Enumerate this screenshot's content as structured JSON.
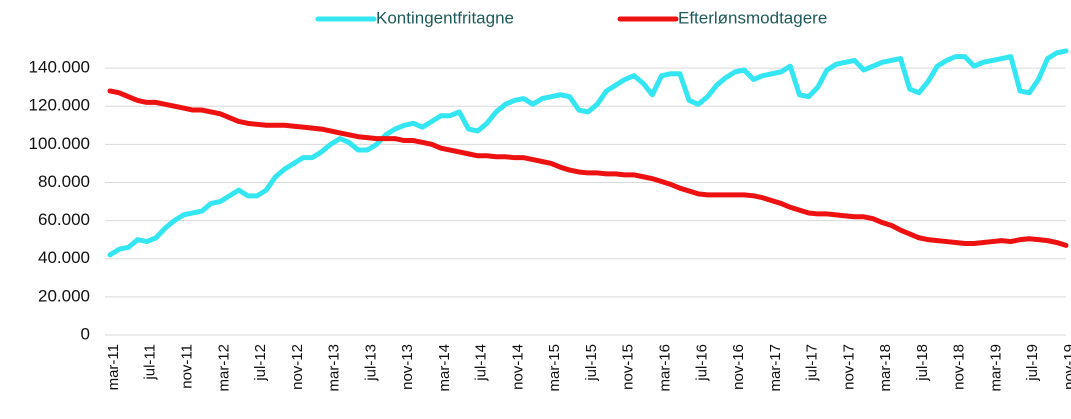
{
  "chart_data": {
    "type": "line",
    "categories": [
      "mar-11",
      null,
      null,
      null,
      "jul-11",
      null,
      null,
      null,
      "nov-11",
      null,
      null,
      null,
      "mar-12",
      null,
      null,
      null,
      "jul-12",
      null,
      null,
      null,
      "nov-12",
      null,
      null,
      null,
      "mar-13",
      null,
      null,
      null,
      "jul-13",
      null,
      null,
      null,
      "nov-13",
      null,
      null,
      null,
      "mar-14",
      null,
      null,
      null,
      "jul-14",
      null,
      null,
      null,
      "nov-14",
      null,
      null,
      null,
      "mar-15",
      null,
      null,
      null,
      "jul-15",
      null,
      null,
      null,
      "nov-15",
      null,
      null,
      null,
      "mar-16",
      null,
      null,
      null,
      "jul-16",
      null,
      null,
      null,
      "nov-16",
      null,
      null,
      null,
      "mar-17",
      null,
      null,
      null,
      "jul-17",
      null,
      null,
      null,
      "nov-17",
      null,
      null,
      null,
      "mar-18",
      null,
      null,
      null,
      "jul-18",
      null,
      null,
      null,
      "nov-18",
      null,
      null,
      null,
      "mar-19",
      null,
      null,
      null,
      "jul-19",
      null,
      null,
      null,
      "nov-19"
    ],
    "series": [
      {
        "name": "Kontingentfritagne",
        "color": "#33e6f2",
        "values": [
          42000,
          45000,
          46000,
          50000,
          49000,
          51000,
          56000,
          60000,
          63000,
          64000,
          65000,
          69000,
          70000,
          73000,
          76000,
          73000,
          73000,
          76000,
          83000,
          87000,
          90000,
          93000,
          93000,
          96000,
          100000,
          103000,
          101000,
          97000,
          97000,
          100000,
          105000,
          108000,
          110000,
          111000,
          109000,
          112000,
          115000,
          115000,
          117000,
          108000,
          107000,
          111000,
          117000,
          121000,
          123000,
          124000,
          121000,
          124000,
          125000,
          126000,
          125000,
          118000,
          117000,
          121000,
          128000,
          131000,
          134000,
          136000,
          132000,
          126000,
          136000,
          137000,
          137000,
          123000,
          121000,
          125000,
          131000,
          135000,
          138000,
          139000,
          134000,
          136000,
          137000,
          138000,
          141000,
          126000,
          125000,
          130000,
          139000,
          142000,
          143000,
          144000,
          139000,
          141000,
          143000,
          144000,
          145000,
          129000,
          127000,
          133000,
          141000,
          144000,
          146000,
          146000,
          141000,
          143000,
          144000,
          145000,
          146000,
          128000,
          127000,
          134000,
          145000,
          148000,
          149000
        ]
      },
      {
        "name": "Efterlønsmodtagere",
        "color": "#ee1111",
        "values": [
          128000,
          127000,
          125000,
          123000,
          122000,
          122000,
          121000,
          120000,
          119000,
          118000,
          118000,
          117000,
          116000,
          114000,
          112000,
          111000,
          110500,
          110000,
          110000,
          110000,
          109500,
          109000,
          108500,
          108000,
          107000,
          106000,
          105000,
          104000,
          103500,
          103000,
          103000,
          103000,
          102000,
          102000,
          101000,
          100000,
          98000,
          97000,
          96000,
          95000,
          94000,
          94000,
          93500,
          93500,
          93000,
          93000,
          92000,
          91000,
          90000,
          88000,
          86500,
          85500,
          85000,
          85000,
          84500,
          84500,
          84000,
          84000,
          83000,
          82000,
          80500,
          79000,
          77000,
          75500,
          74000,
          73500,
          73500,
          73500,
          73500,
          73500,
          73000,
          72000,
          70500,
          69000,
          67000,
          65500,
          64000,
          63500,
          63500,
          63000,
          62500,
          62000,
          62000,
          61000,
          59000,
          57500,
          55000,
          53000,
          51000,
          50000,
          49500,
          49000,
          48500,
          48000,
          48000,
          48500,
          49000,
          49500,
          49000,
          50000,
          50500,
          50000,
          49500,
          48500,
          47000
        ]
      }
    ],
    "ylim": [
      0,
      150000
    ],
    "yticks": [
      0,
      {
        "value": 20000,
        "label": "20.000"
      },
      {
        "value": 40000,
        "label": "40.000"
      },
      {
        "value": 60000,
        "label": "60.000"
      },
      {
        "value": 80000,
        "label": "80.000"
      },
      {
        "value": 100000,
        "label": "100.000"
      },
      {
        "value": 120000,
        "label": "120.000"
      },
      {
        "value": 140000,
        "label": "140.000"
      }
    ],
    "grid": true,
    "legend": "top"
  }
}
